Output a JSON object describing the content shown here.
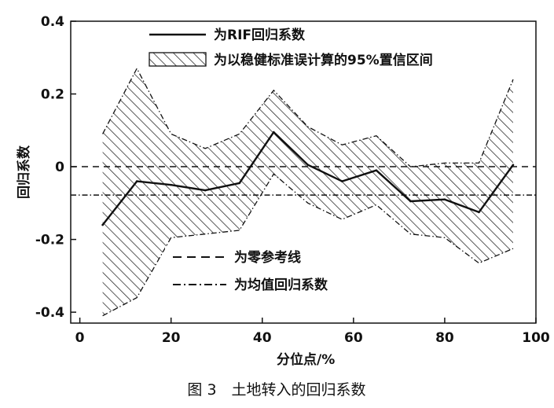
{
  "chart_data": {
    "type": "line",
    "x": [
      5,
      12.5,
      20,
      27.5,
      35,
      42.5,
      50,
      57.5,
      65,
      72.5,
      80,
      87.5,
      95
    ],
    "series": [
      {
        "name": "为RIF回归系数",
        "values": [
          -0.16,
          -0.04,
          -0.05,
          -0.065,
          -0.045,
          0.095,
          0.005,
          -0.04,
          -0.01,
          -0.095,
          -0.09,
          -0.125,
          0.005
        ]
      },
      {
        "name": "为以稳健标准误计算的95%置信区间",
        "upper": [
          0.09,
          0.27,
          0.09,
          0.05,
          0.09,
          0.21,
          0.11,
          0.06,
          0.085,
          0.0,
          0.01,
          0.01,
          0.24
        ],
        "lower": [
          -0.41,
          -0.36,
          -0.195,
          -0.185,
          -0.175,
          -0.02,
          -0.1,
          -0.145,
          -0.105,
          -0.185,
          -0.195,
          -0.265,
          -0.225
        ]
      }
    ],
    "reference_lines": [
      {
        "name": "为零参考线",
        "value": 0,
        "style": "dashed"
      },
      {
        "name": "为均值回归系数",
        "value": -0.078,
        "style": "dash-dot"
      }
    ],
    "xlabel": "分位点/%",
    "ylabel": "回归系数",
    "xlim": [
      -2,
      100
    ],
    "ylim": [
      -0.43,
      0.4
    ],
    "xticks": [
      0,
      20,
      40,
      60,
      80,
      100
    ],
    "yticks": [
      0.4,
      0.2,
      0,
      -0.2,
      -0.4
    ],
    "xtick_labels": [
      "0",
      "20",
      "40",
      "60",
      "80",
      "100"
    ],
    "ytick_labels": [
      "0.4",
      "0.2",
      "0",
      "-0.2",
      "-0.4"
    ],
    "legend": {
      "top_items": [
        0,
        1
      ],
      "bottom_items": [
        2,
        3
      ]
    },
    "grid": false
  },
  "caption": "图 3　土地转入的回归系数"
}
